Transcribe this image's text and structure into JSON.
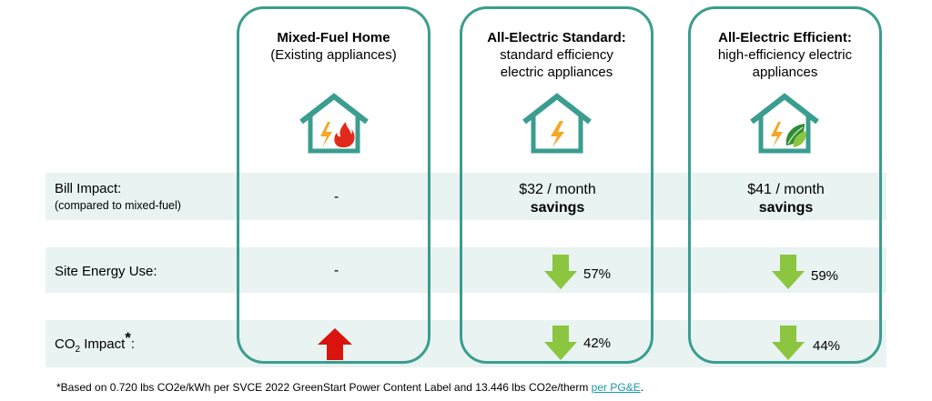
{
  "columns": [
    {
      "title": "Mixed-Fuel Home",
      "subtitle": "(Existing appliances)"
    },
    {
      "title": "All-Electric Standard:",
      "subtitle": "standard efficiency electric appliances"
    },
    {
      "title": "All-Electric Efficient:",
      "subtitle": "high-efficiency electric appliances"
    }
  ],
  "rows": {
    "bill": {
      "label": "Bill Impact:",
      "sublabel": "(compared to mixed-fuel)",
      "values": [
        "-",
        "$32 / month",
        "$41 / month"
      ],
      "emphasis": [
        "",
        "savings",
        "savings"
      ]
    },
    "site": {
      "label": "Site Energy Use:",
      "values": [
        "-",
        "57%",
        "59%"
      ]
    },
    "co2": {
      "label_prefix": "CO",
      "label_sub": "2",
      "label_suffix": " Impact",
      "label_mark": "*",
      "label_colon": ":",
      "values": [
        "",
        "42%",
        "44%"
      ]
    }
  },
  "icons": {
    "house": "house-icon",
    "lightning": "lightning-icon",
    "flame": "flame-icon",
    "leaf": "leaf-icon",
    "up_arrow": "up-arrow-icon",
    "down_arrow": "down-arrow-icon"
  },
  "colors": {
    "teal": "#3a9d8f",
    "band": "#e8f3f2",
    "green_arrow": "#8cc540",
    "red_arrow": "#d9140f",
    "lightning": "#f5a623",
    "flame": "#e02a1c"
  },
  "footnote": {
    "text": "*Based on 0.720 lbs CO2e/kWh per SVCE 2022 GreenStart Power Content Label and 13.446 lbs CO2e/therm ",
    "link": "per PG&E",
    "end": "."
  }
}
